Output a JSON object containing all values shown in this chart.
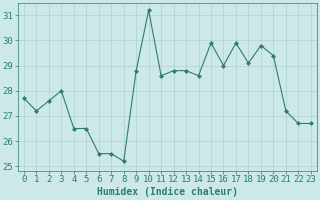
{
  "x": [
    0,
    1,
    2,
    3,
    4,
    5,
    6,
    7,
    8,
    9,
    10,
    11,
    12,
    13,
    14,
    15,
    16,
    17,
    18,
    19,
    20,
    21,
    22,
    23
  ],
  "y": [
    27.7,
    27.2,
    27.6,
    28.0,
    26.5,
    26.5,
    25.5,
    25.5,
    25.2,
    28.8,
    31.2,
    28.6,
    28.8,
    28.8,
    28.6,
    29.9,
    29.0,
    29.9,
    29.1,
    29.8,
    29.4,
    27.2,
    26.7,
    26.7
  ],
  "line_color": "#2e7d6e",
  "marker": "D",
  "marker_size": 2,
  "bg_color": "#cce8e8",
  "grid_color": "#b0d0d0",
  "xlabel": "Humidex (Indice chaleur)",
  "ylim": [
    24.8,
    31.5
  ],
  "xlim": [
    -0.5,
    23.5
  ],
  "yticks": [
    25,
    26,
    27,
    28,
    29,
    30,
    31
  ],
  "xticks": [
    0,
    1,
    2,
    3,
    4,
    5,
    6,
    7,
    8,
    9,
    10,
    11,
    12,
    13,
    14,
    15,
    16,
    17,
    18,
    19,
    20,
    21,
    22,
    23
  ],
  "xtick_labels": [
    "0",
    "1",
    "2",
    "3",
    "4",
    "5",
    "6",
    "7",
    "8",
    "9",
    "10",
    "11",
    "12",
    "13",
    "14",
    "15",
    "16",
    "17",
    "18",
    "19",
    "20",
    "21",
    "22",
    "23"
  ],
  "tick_color": "#2e7d6e",
  "label_color": "#2e7d6e",
  "font_size_xlabel": 7,
  "font_size_ticks": 6.5
}
